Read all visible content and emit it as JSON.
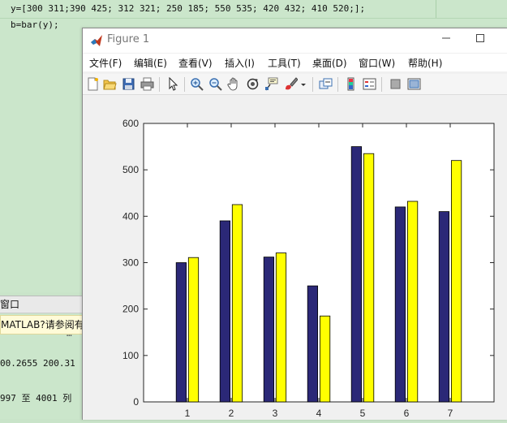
{
  "editor": {
    "line1": "y=[300 311;390 425; 312 321; 250 185; 550 535; 420 432; 410 520;];",
    "line2": "b=bar(y);"
  },
  "command_window": {
    "title": "窗口",
    "notice": "MATLAB?请参阅有",
    "out1": "00.2655  200.31",
    "out2": "997 至 4001 列",
    "out3": "…"
  },
  "figure": {
    "title": "Figure 1",
    "menu": [
      "文件(F)",
      "编辑(E)",
      "查看(V)",
      "插入(I)",
      "工具(T)",
      "桌面(D)",
      "窗口(W)",
      "帮助(H)"
    ],
    "toolbar_icons": [
      "new-figure-icon",
      "open-file-icon",
      "save-icon",
      "print-icon",
      "pointer-icon",
      "zoom-in-icon",
      "zoom-out-icon",
      "pan-icon",
      "rotate-icon",
      "data-cursor-icon",
      "brush-icon",
      "brush-dropdown-icon",
      "link-plot-icon",
      "colorbar-icon",
      "legend-icon",
      "hide-plot-tools-icon",
      "show-plot-tools-icon"
    ]
  },
  "colors": {
    "series1": "#2b2877",
    "series2": "#ffff00"
  },
  "chart_data": {
    "type": "bar",
    "categories": [
      "1",
      "2",
      "3",
      "4",
      "5",
      "6",
      "7"
    ],
    "series": [
      {
        "values": [
          300,
          390,
          312,
          250,
          550,
          420,
          410
        ]
      },
      {
        "values": [
          311,
          425,
          321,
          185,
          535,
          432,
          520
        ]
      }
    ],
    "ylim": [
      0,
      600
    ],
    "yticks": [
      0,
      100,
      200,
      300,
      400,
      500,
      600
    ],
    "xlim": [
      0,
      8
    ],
    "title": "",
    "xlabel": "",
    "ylabel": "",
    "grid": false,
    "legend": "none"
  }
}
